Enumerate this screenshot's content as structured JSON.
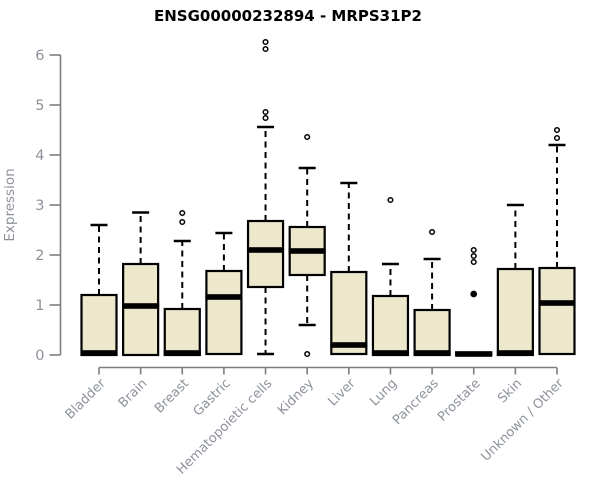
{
  "title": "ENSG00000232894 - MRPS31P2",
  "chart_data": {
    "type": "boxplot",
    "title": "ENSG00000232894 - MRPS31P2",
    "ylabel": "Expression",
    "xlabel": "",
    "ylim": [
      0,
      6
    ],
    "yticks": [
      0,
      1,
      2,
      3,
      4,
      5,
      6
    ],
    "grid": false,
    "legend": "none",
    "categories": [
      "Bladder",
      "Brain",
      "Breast",
      "Gastric",
      "Hematopoietic cells",
      "Kidney",
      "Liver",
      "Lung",
      "Pancreas",
      "Prostate",
      "Skin",
      "Unknown / Other"
    ],
    "series": [
      {
        "name": "Bladder",
        "low": 0,
        "q1": 0,
        "median": 0.04,
        "q3": 1.2,
        "high": 2.6,
        "outliers": []
      },
      {
        "name": "Brain",
        "low": 0,
        "q1": 0,
        "median": 0.98,
        "q3": 1.82,
        "high": 2.85,
        "outliers": []
      },
      {
        "name": "Breast",
        "low": 0,
        "q1": 0,
        "median": 0.04,
        "q3": 0.92,
        "high": 2.28,
        "outliers": [
          2.66,
          2.84
        ]
      },
      {
        "name": "Gastric",
        "low": 0.02,
        "q1": 0.02,
        "median": 1.16,
        "q3": 1.68,
        "high": 2.44,
        "outliers": []
      },
      {
        "name": "Hematopoietic cells",
        "low": 0.02,
        "q1": 1.36,
        "median": 2.1,
        "q3": 2.68,
        "high": 4.56,
        "outliers": [
          4.74,
          4.86,
          6.12,
          6.26
        ]
      },
      {
        "name": "Kidney",
        "low": 0.6,
        "q1": 1.6,
        "median": 2.08,
        "q3": 2.56,
        "high": 3.74,
        "outliers": [
          0.02,
          4.36
        ]
      },
      {
        "name": "Liver",
        "low": 0.02,
        "q1": 0.02,
        "median": 0.2,
        "q3": 1.66,
        "high": 3.44,
        "outliers": []
      },
      {
        "name": "Lung",
        "low": 0,
        "q1": 0,
        "median": 0.04,
        "q3": 1.18,
        "high": 1.82,
        "outliers": [
          3.1
        ]
      },
      {
        "name": "Pancreas",
        "low": 0,
        "q1": 0,
        "median": 0.04,
        "q3": 0.9,
        "high": 1.92,
        "outliers": [
          2.46
        ]
      },
      {
        "name": "Prostate",
        "low": 0,
        "q1": 0,
        "median": 0.02,
        "q3": 0.05,
        "high": null,
        "outliers": [
          1.86,
          1.98,
          2.1
        ],
        "outliers_filled": [
          1.22
        ]
      },
      {
        "name": "Skin",
        "low": 0,
        "q1": 0,
        "median": 0.04,
        "q3": 1.72,
        "high": 3.0,
        "outliers": []
      },
      {
        "name": "Unknown / Other",
        "low": 0.02,
        "q1": 0.02,
        "median": 1.04,
        "q3": 1.74,
        "high": 4.2,
        "outliers": [
          4.34,
          4.5
        ]
      }
    ],
    "colors": {
      "box_fill": "#EDE8CC",
      "box_stroke": "#000000",
      "median": "#000000",
      "whisker": "#000000",
      "axis": "#7E7E7E",
      "tick_label": "#8D929B",
      "axis_label": "#8D929B",
      "title": "#000000",
      "background": "#FFFFFF"
    }
  }
}
